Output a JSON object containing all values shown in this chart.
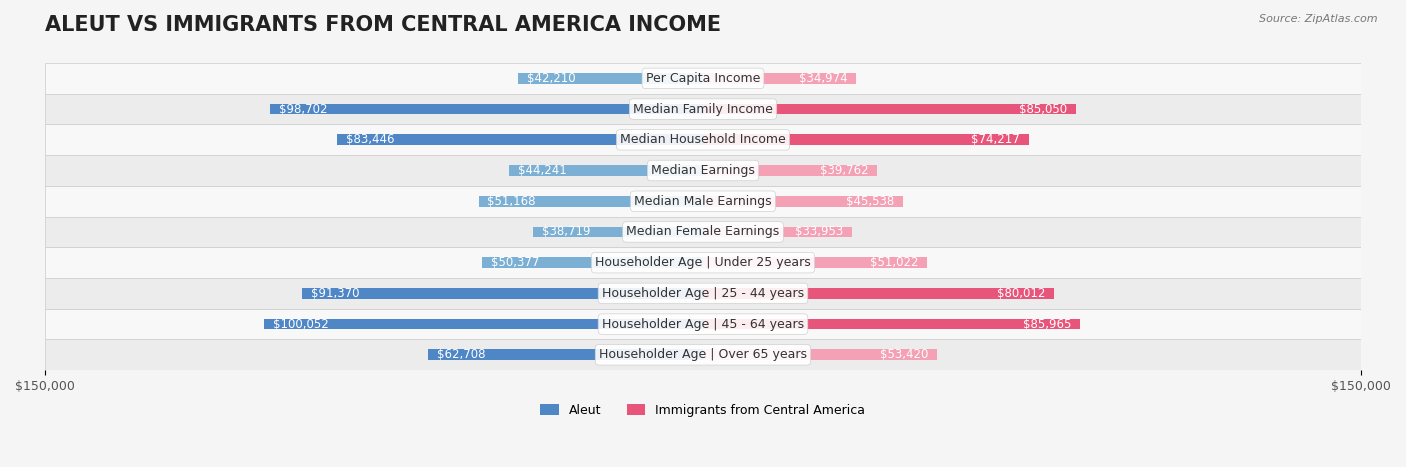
{
  "title": "ALEUT VS IMMIGRANTS FROM CENTRAL AMERICA INCOME",
  "source": "Source: ZipAtlas.com",
  "categories": [
    "Per Capita Income",
    "Median Family Income",
    "Median Household Income",
    "Median Earnings",
    "Median Male Earnings",
    "Median Female Earnings",
    "Householder Age | Under 25 years",
    "Householder Age | 25 - 44 years",
    "Householder Age | 45 - 64 years",
    "Householder Age | Over 65 years"
  ],
  "aleut_values": [
    42210,
    98702,
    83446,
    44241,
    51168,
    38719,
    50377,
    91370,
    100052,
    62708
  ],
  "immigrant_values": [
    34974,
    85050,
    74217,
    39762,
    45538,
    33953,
    51022,
    80012,
    85965,
    53420
  ],
  "aleut_color": "#7bafd4",
  "aleut_color_dark": "#4f86c6",
  "immigrant_color": "#f4a0b5",
  "immigrant_color_dark": "#e8557a",
  "max_value": 150000,
  "aleut_label": "Aleut",
  "immigrant_label": "Immigrants from Central America",
  "background_color": "#f5f5f5",
  "row_bg_color": "#ffffff",
  "title_fontsize": 15,
  "label_fontsize": 9,
  "value_fontsize": 8.5
}
